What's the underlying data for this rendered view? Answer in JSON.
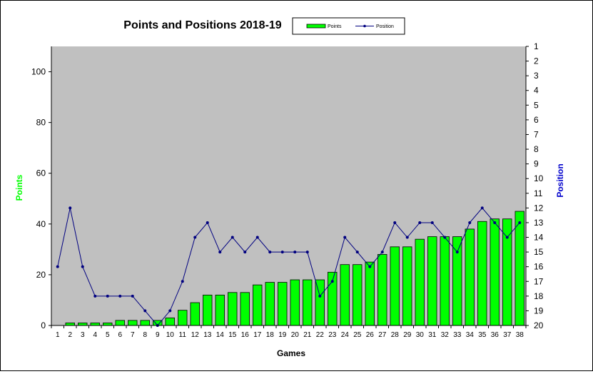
{
  "chart_data": {
    "type": "bar",
    "title": "Points and Positions 2018-19",
    "xlabel": "Games",
    "ylabel": "Points",
    "y2label": "Position",
    "ylim": [
      0,
      110
    ],
    "y2lim": [
      1,
      20
    ],
    "y2_inverted": true,
    "y_ticks": [
      0,
      20,
      40,
      60,
      80,
      100
    ],
    "y2_ticks": [
      1,
      2,
      3,
      4,
      5,
      6,
      7,
      8,
      9,
      10,
      11,
      12,
      13,
      14,
      15,
      16,
      17,
      18,
      19,
      20
    ],
    "categories": [
      "1",
      "2",
      "3",
      "4",
      "5",
      "6",
      "7",
      "8",
      "9",
      "10",
      "11",
      "12",
      "13",
      "14",
      "15",
      "16",
      "17",
      "18",
      "19",
      "20",
      "21",
      "22",
      "23",
      "24",
      "25",
      "26",
      "27",
      "28",
      "29",
      "30",
      "31",
      "32",
      "33",
      "34",
      "35",
      "36",
      "37",
      "38"
    ],
    "series": [
      {
        "name": "Points",
        "type": "bar",
        "axis": "left",
        "color": "#00ff00",
        "values": [
          0,
          1,
          1,
          1,
          1,
          2,
          2,
          2,
          2,
          3,
          6,
          9,
          12,
          12,
          13,
          13,
          16,
          17,
          17,
          18,
          18,
          18,
          21,
          24,
          24,
          25,
          28,
          31,
          31,
          34,
          35,
          35,
          35,
          38,
          41,
          42,
          42,
          45
        ]
      },
      {
        "name": "Position",
        "type": "line",
        "axis": "right",
        "color": "#000080",
        "values": [
          16,
          12,
          16,
          18,
          18,
          18,
          18,
          19,
          20,
          19,
          17,
          14,
          13,
          15,
          14,
          15,
          14,
          15,
          15,
          15,
          15,
          18,
          17,
          14,
          15,
          16,
          15,
          13,
          14,
          13,
          13,
          14,
          15,
          13,
          12,
          13,
          14,
          13
        ]
      }
    ],
    "legend": {
      "position": "top-right",
      "items": [
        "Points",
        "Position"
      ]
    },
    "grid": false,
    "plot_background": "#c0c0c0",
    "y_label_color": "#00ff00",
    "y2_label_color": "#0000cc"
  }
}
